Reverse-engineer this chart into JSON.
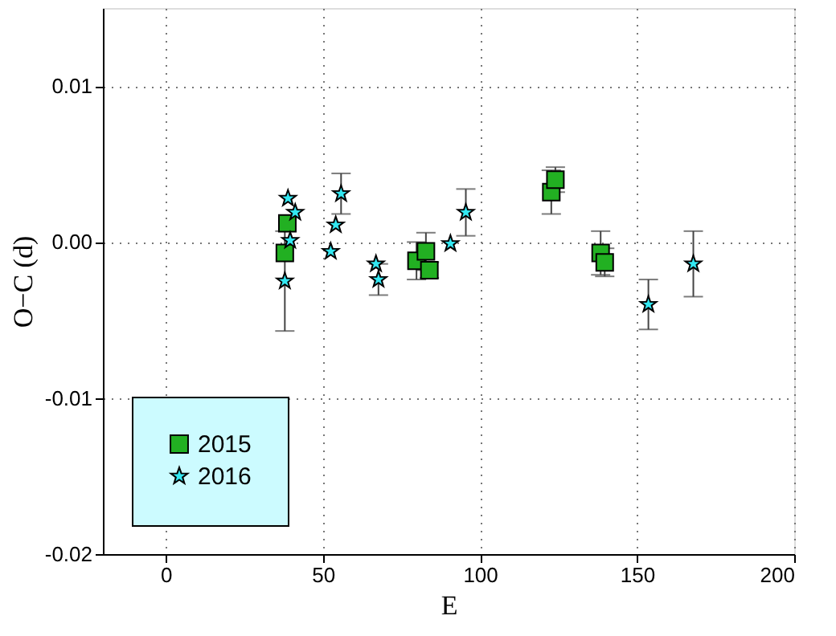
{
  "chart_data": {
    "type": "scatter",
    "xlabel": "E",
    "ylabel": "O−C (d)",
    "xlim": [
      -20,
      200
    ],
    "xticks": [
      0,
      50,
      100,
      150,
      200
    ],
    "ylim": [
      -0.02,
      0.015
    ],
    "yticks": [
      -0.02,
      -0.01,
      {
        "value": 0,
        "label": "0.00"
      },
      0.01
    ],
    "grid": true,
    "legend": "bottom left",
    "series": [
      {
        "name": "2015",
        "color": "#22b022",
        "marker": "square",
        "x": [
          37.9,
          38.7,
          79.8,
          81,
          82.8,
          83.9,
          122.7,
          124,
          138.4,
          139.7
        ],
        "values": [
          -0.0007,
          0.0012,
          -0.0012,
          null,
          -0.0006,
          -0.0018,
          0.0032,
          0.004,
          -0.0007,
          -0.0013
        ],
        "errors": [
          null,
          null,
          0.0012,
          null,
          0.0012,
          0.0005,
          0.0014,
          0.0008,
          0.0014,
          0.0009
        ]
      },
      {
        "name": "2016",
        "color": "#33e8f2",
        "marker": "star",
        "x": [
          37.9,
          38.9,
          39.6,
          41.2,
          52.5,
          54.1,
          55.8,
          66.9,
          67.7,
          90.6,
          95.5,
          153.6,
          167.9
        ],
        "values": [
          -0.0025,
          0.0028,
          0.0001,
          0.0019,
          -0.0006,
          0.0011,
          0.0031,
          -0.0014,
          -0.0024,
          -0.0001,
          0.0019,
          -0.004,
          -0.0014
        ],
        "errors": [
          0.0032,
          null,
          null,
          null,
          null,
          null,
          0.0013,
          null,
          0.001,
          null,
          0.0015,
          0.0016,
          0.0021
        ]
      }
    ]
  }
}
